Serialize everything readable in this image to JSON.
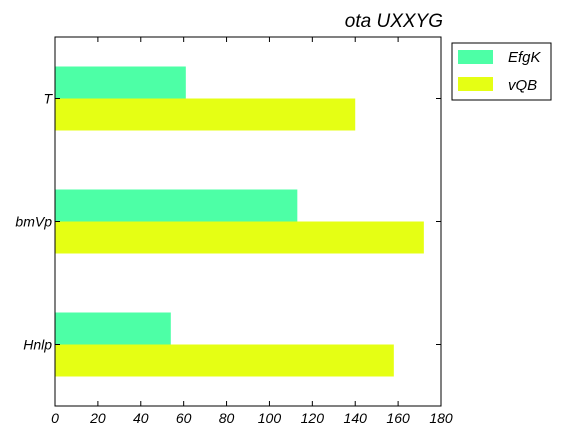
{
  "chart_data": {
    "type": "bar",
    "orientation": "horizontal",
    "title": "ota UXXYG",
    "xlabel": "",
    "ylabel": "",
    "categories": [
      "T",
      "bmVp",
      "Hnlp"
    ],
    "series": [
      {
        "name": "EfgK",
        "color": "#4dffa6",
        "values": [
          61,
          113,
          54
        ]
      },
      {
        "name": "vQB",
        "color": "#e5ff14",
        "values": [
          140,
          172,
          158
        ]
      }
    ],
    "xlim": [
      0,
      180
    ],
    "xticks": [
      "0",
      "20",
      "40",
      "60",
      "80",
      "100",
      "120",
      "140",
      "160",
      "180"
    ],
    "grid": false,
    "legend_position": "outside-top-right"
  }
}
